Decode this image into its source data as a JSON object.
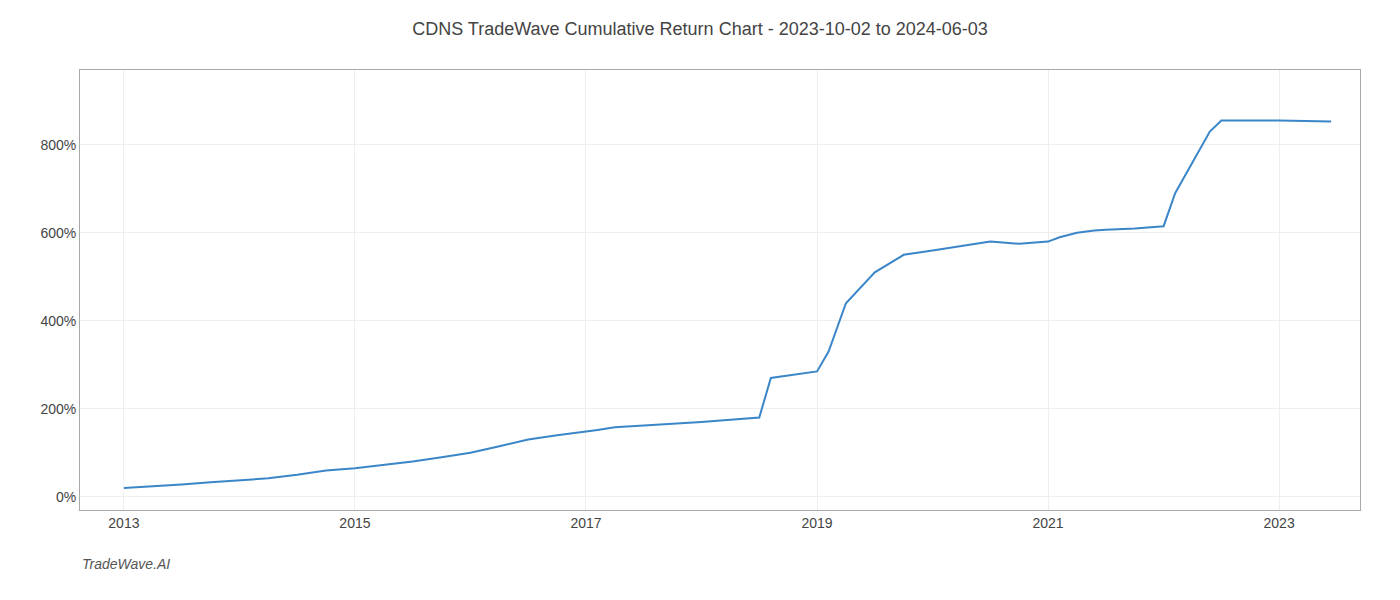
{
  "chart_data": {
    "type": "line",
    "title": "CDNS TradeWave Cumulative Return Chart - 2023-10-02 to 2024-06-03",
    "annotations": [
      "TradeWave.AI"
    ],
    "color": "#3a86c8",
    "grid": true,
    "x": [
      2013.0,
      2013.15,
      2013.3,
      2013.5,
      2013.75,
      2014.0,
      2014.25,
      2014.5,
      2014.75,
      2015.0,
      2015.25,
      2015.5,
      2015.75,
      2016.0,
      2016.25,
      2016.5,
      2016.75,
      2017.0,
      2017.1,
      2017.25,
      2017.5,
      2017.75,
      2018.0,
      2018.25,
      2018.5,
      2018.6,
      2018.75,
      2019.0,
      2019.1,
      2019.25,
      2019.5,
      2019.75,
      2020.0,
      2020.25,
      2020.5,
      2020.75,
      2021.0,
      2021.1,
      2021.25,
      2021.4,
      2021.5,
      2021.75,
      2022.0,
      2022.1,
      2022.25,
      2022.4,
      2022.5,
      2023.0,
      2023.45
    ],
    "values": [
      20,
      22,
      25,
      28,
      33,
      37,
      42,
      50,
      60,
      65,
      72,
      80,
      90,
      100,
      115,
      130,
      140,
      148,
      152,
      158,
      162,
      165,
      170,
      175,
      180,
      270,
      275,
      285,
      330,
      440,
      510,
      550,
      560,
      570,
      580,
      575,
      580,
      590,
      600,
      605,
      607,
      610,
      615,
      690,
      760,
      830,
      855,
      855,
      853
    ],
    "xlim": [
      2012.62,
      2023.7
    ],
    "ylim": [
      -30,
      970
    ],
    "xticks": [
      2013,
      2015,
      2017,
      2019,
      2021,
      2023
    ],
    "yticks": [
      {
        "value": 0,
        "label": "0%"
      },
      {
        "value": 200,
        "label": "200%"
      },
      {
        "value": 400,
        "label": "400%"
      },
      {
        "value": 600,
        "label": "600%"
      },
      {
        "value": 800,
        "label": "800%"
      }
    ]
  }
}
